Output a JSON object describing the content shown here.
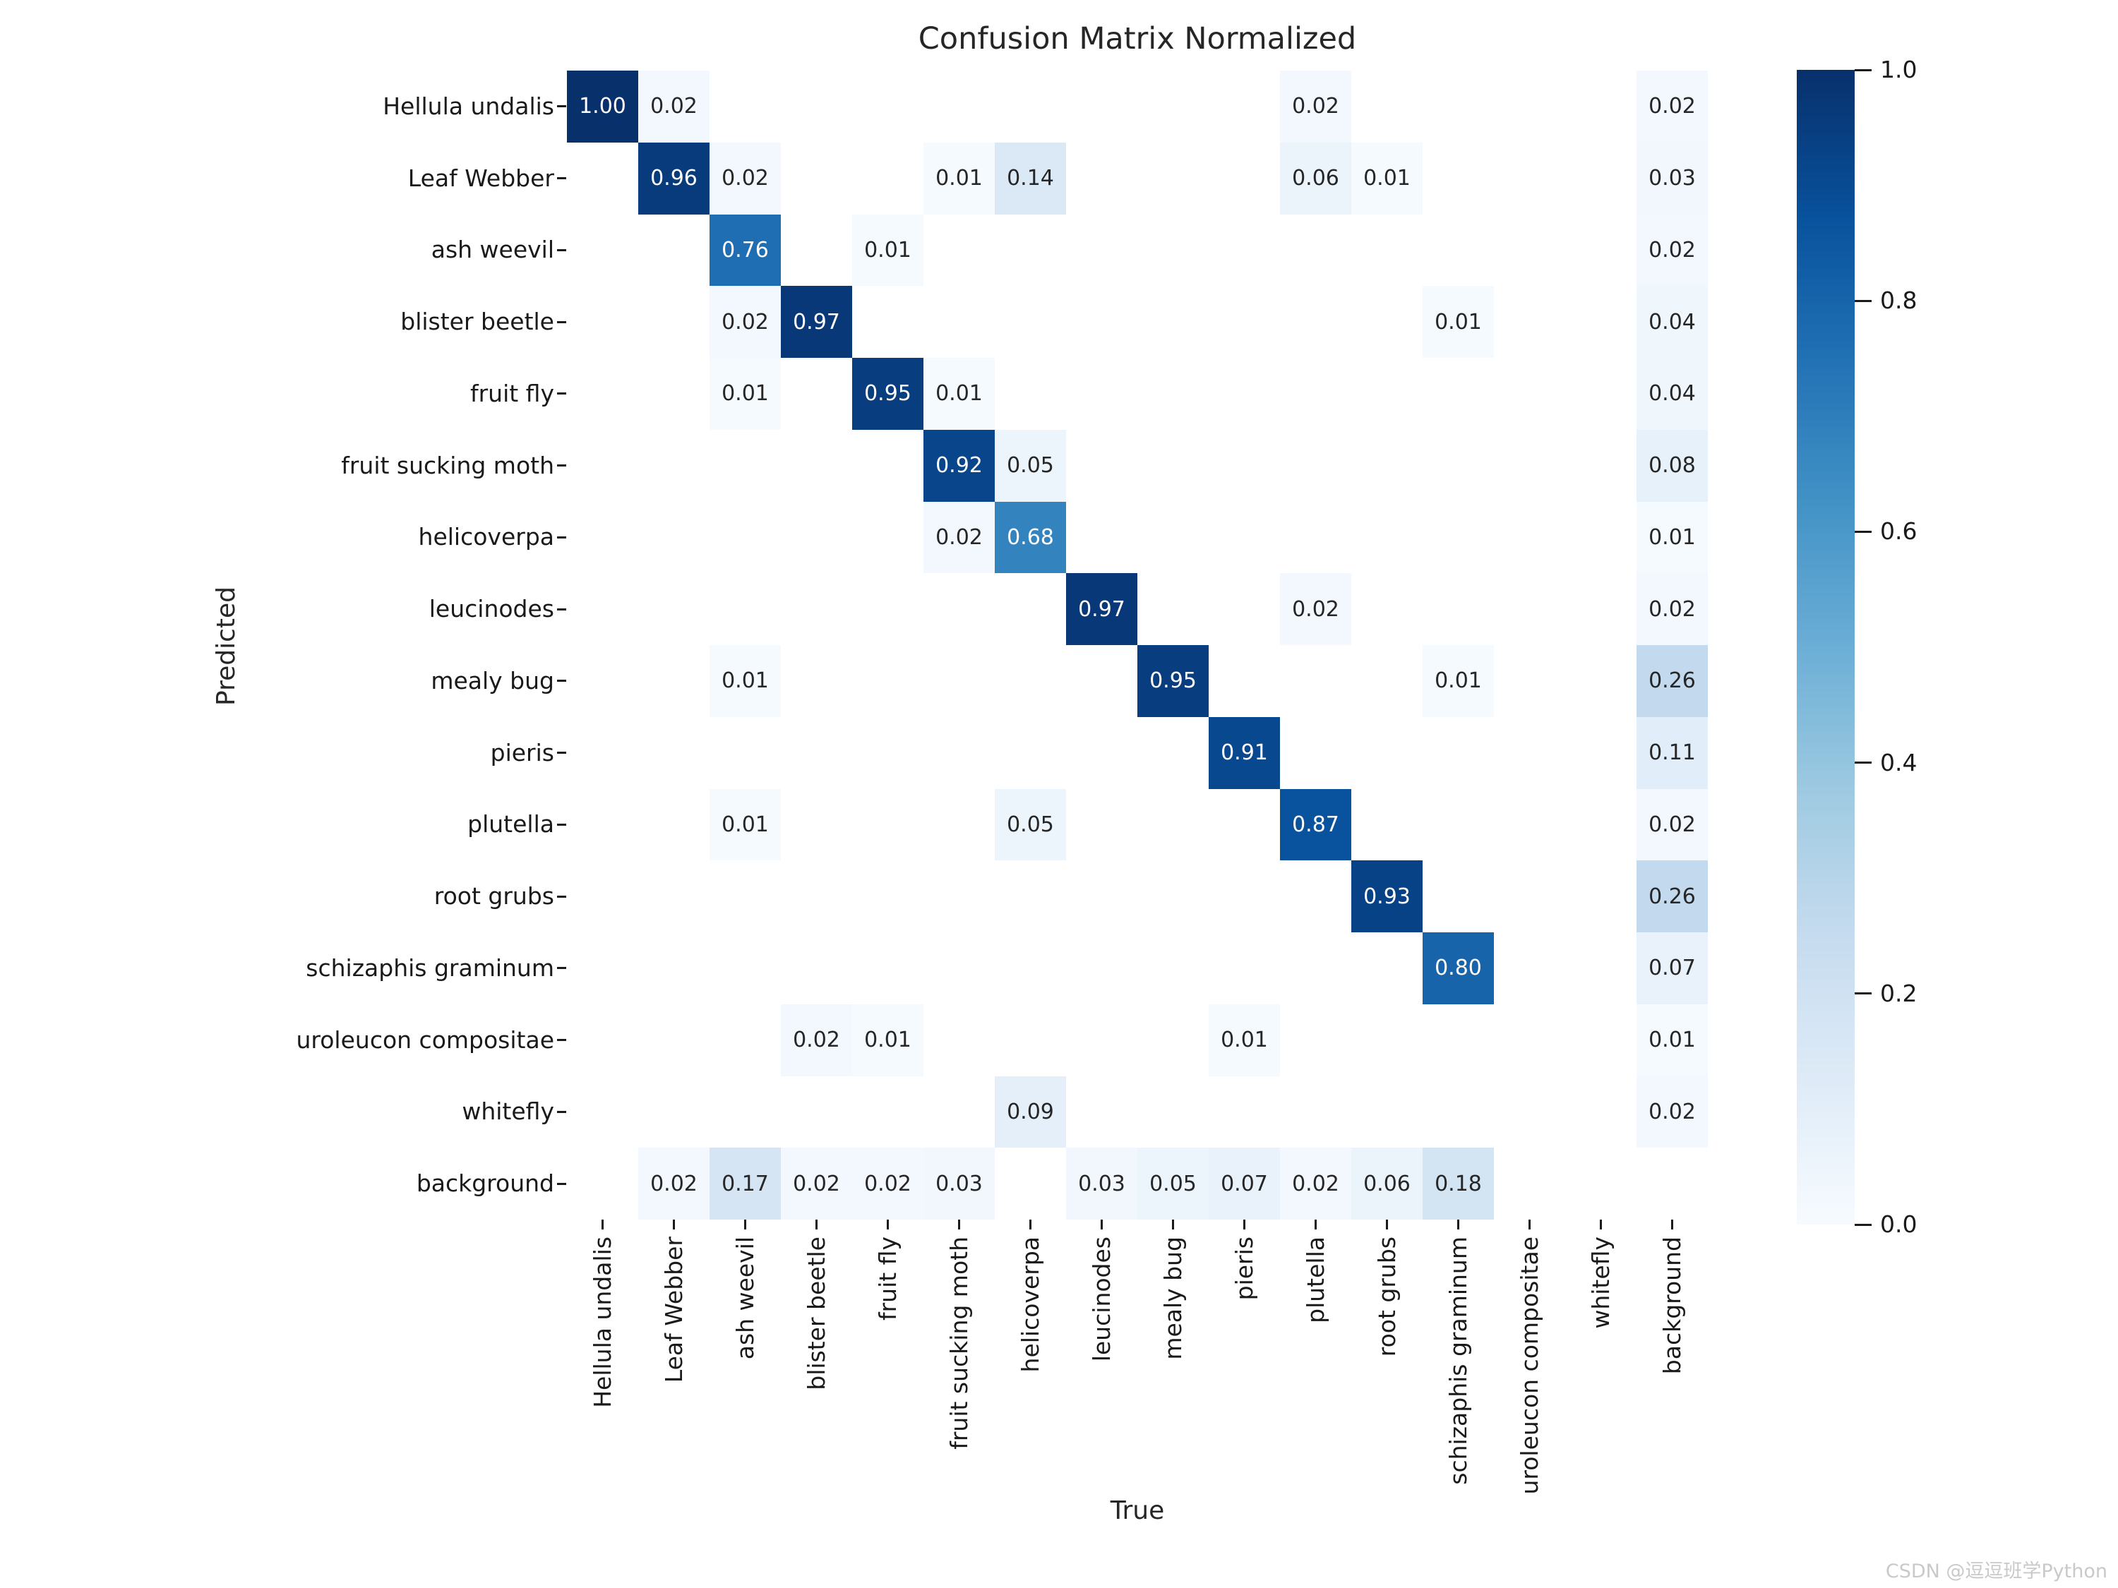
{
  "chart_data": {
    "type": "heatmap",
    "title": "Confusion Matrix Normalized",
    "xlabel": "True",
    "ylabel": "Predicted",
    "categories": [
      "Hellula undalis",
      "Leaf Webber",
      "ash weevil",
      "blister beetle",
      "fruit fly",
      "fruit sucking moth",
      "helicoverpa",
      "leucinodes",
      "mealy bug",
      "pieris",
      "plutella",
      "root grubs",
      "schizaphis graminum",
      "uroleucon compositae",
      "whitefly",
      "background"
    ],
    "matrix": [
      [
        1.0,
        0.02,
        null,
        null,
        null,
        null,
        null,
        null,
        null,
        null,
        0.02,
        null,
        null,
        null,
        null,
        0.02
      ],
      [
        null,
        0.96,
        0.02,
        null,
        null,
        0.01,
        0.14,
        null,
        null,
        null,
        0.06,
        0.01,
        null,
        null,
        null,
        0.03
      ],
      [
        null,
        null,
        0.76,
        null,
        0.01,
        null,
        null,
        null,
        null,
        null,
        null,
        null,
        null,
        null,
        null,
        0.02
      ],
      [
        null,
        null,
        0.02,
        0.97,
        null,
        null,
        null,
        null,
        null,
        null,
        null,
        null,
        0.01,
        null,
        null,
        0.04
      ],
      [
        null,
        null,
        0.01,
        null,
        0.95,
        0.01,
        null,
        null,
        null,
        null,
        null,
        null,
        null,
        null,
        null,
        0.04
      ],
      [
        null,
        null,
        null,
        null,
        null,
        0.92,
        0.05,
        null,
        null,
        null,
        null,
        null,
        null,
        null,
        null,
        0.08
      ],
      [
        null,
        null,
        null,
        null,
        null,
        0.02,
        0.68,
        null,
        null,
        null,
        null,
        null,
        null,
        null,
        null,
        0.01
      ],
      [
        null,
        null,
        null,
        null,
        null,
        null,
        null,
        0.97,
        null,
        null,
        0.02,
        null,
        null,
        null,
        null,
        0.02
      ],
      [
        null,
        null,
        0.01,
        null,
        null,
        null,
        null,
        null,
        0.95,
        null,
        null,
        null,
        0.01,
        null,
        null,
        0.26
      ],
      [
        null,
        null,
        null,
        null,
        null,
        null,
        null,
        null,
        null,
        0.91,
        null,
        null,
        null,
        null,
        null,
        0.11
      ],
      [
        null,
        null,
        0.01,
        null,
        null,
        null,
        0.05,
        null,
        null,
        null,
        0.87,
        null,
        null,
        null,
        null,
        0.02
      ],
      [
        null,
        null,
        null,
        null,
        null,
        null,
        null,
        null,
        null,
        null,
        null,
        0.93,
        null,
        null,
        null,
        0.26
      ],
      [
        null,
        null,
        null,
        null,
        null,
        null,
        null,
        null,
        null,
        null,
        null,
        null,
        0.8,
        null,
        null,
        0.07
      ],
      [
        null,
        null,
        null,
        0.02,
        0.01,
        null,
        null,
        null,
        null,
        0.01,
        null,
        null,
        null,
        null,
        null,
        0.01
      ],
      [
        null,
        null,
        null,
        null,
        null,
        null,
        0.09,
        null,
        null,
        null,
        null,
        null,
        null,
        null,
        null,
        0.02
      ],
      [
        null,
        0.02,
        0.17,
        0.02,
        0.02,
        0.03,
        null,
        0.03,
        0.05,
        0.07,
        0.02,
        0.06,
        0.18,
        null,
        null,
        null
      ]
    ],
    "value_range": [
      0.0,
      1.0
    ],
    "annotation_decimals": 2,
    "grid": false,
    "legend_position": "right-colorbar",
    "colorbar_ticks": [
      "1.0",
      "0.8",
      "0.6",
      "0.4",
      "0.2",
      "0.0"
    ],
    "colorbar_tick_values": [
      1.0,
      0.8,
      0.6,
      0.4,
      0.2,
      0.0
    ],
    "colormap": {
      "name": "Blues",
      "anchors": [
        "#f7fbff",
        "#deebf7",
        "#c6dbef",
        "#9ecae1",
        "#6baed6",
        "#4292c6",
        "#2171b5",
        "#08519c",
        "#08306b"
      ]
    }
  },
  "colors": {
    "annotation_dark": "#262626",
    "annotation_light": "#ffffff",
    "tick": "#1a1a1a",
    "empty_cell": "#ffffff"
  },
  "watermark": {
    "text": "CSDN @逗逗班学Python"
  }
}
